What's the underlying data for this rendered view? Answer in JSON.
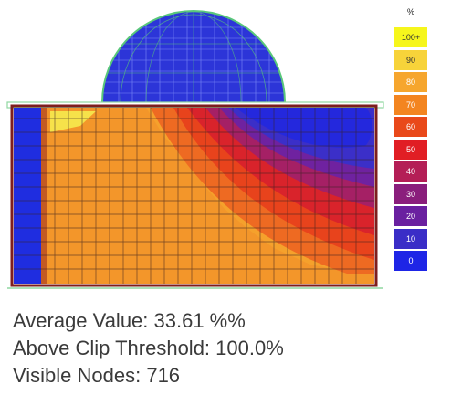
{
  "legend": {
    "unit": "%",
    "entries": [
      {
        "label": "100+",
        "color": "#f6f61c"
      },
      {
        "label": "90",
        "color": "#f7d33a"
      },
      {
        "label": "80",
        "color": "#f6a62e"
      },
      {
        "label": "70",
        "color": "#f38520"
      },
      {
        "label": "60",
        "color": "#e9491a"
      },
      {
        "label": "50",
        "color": "#e11e24"
      },
      {
        "label": "40",
        "color": "#b41e56"
      },
      {
        "label": "30",
        "color": "#8a1e7c"
      },
      {
        "label": "20",
        "color": "#6a20a0"
      },
      {
        "label": "10",
        "color": "#3a2dc7"
      },
      {
        "label": "0",
        "color": "#1e25e6"
      }
    ]
  },
  "stats": {
    "average": "Average Value: 33.61 %%",
    "above_clip": "Above Clip Threshold: 100.0%",
    "visible_nodes": "Visible Nodes: 716"
  },
  "colors": {
    "dome_fill": "#2c35d8",
    "dome_wire": "#59c77a",
    "room_border": "#7d1e1e",
    "wall_blue": "#1f2de0"
  }
}
